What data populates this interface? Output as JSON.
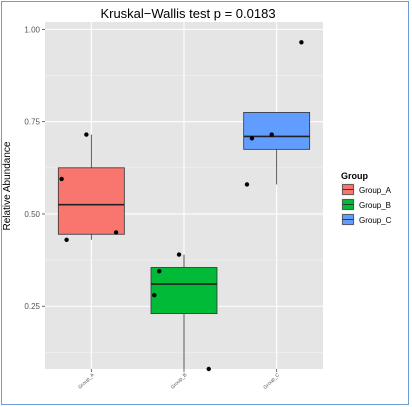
{
  "chart_data": {
    "type": "box",
    "title": "Kruskal−Wallis test   p = 0.0183",
    "ylabel": "Relative Abundance",
    "xlabel": "",
    "ylim": [
      0.08,
      1.02
    ],
    "yticks": [
      0.25,
      0.5,
      0.75,
      1.0
    ],
    "ytick_labels": [
      "0.25",
      "0.50",
      "0.75",
      "1.00"
    ],
    "categories": [
      "Group_A",
      "Group_B",
      "Group_C"
    ],
    "grid": true,
    "legend": {
      "title": "Group",
      "position": "right"
    },
    "series": [
      {
        "name": "Group_A",
        "color": "#f8766d",
        "box": {
          "min": 0.43,
          "q1": 0.445,
          "median": 0.525,
          "q3": 0.625,
          "max": 0.715
        },
        "points": [
          0.595,
          0.43,
          0.715,
          0.45
        ]
      },
      {
        "name": "Group_B",
        "color": "#00ba38",
        "box": {
          "min": 0.08,
          "q1": 0.23,
          "median": 0.31,
          "q3": 0.355,
          "max": 0.39
        },
        "points": [
          0.28,
          0.345,
          0.39,
          0.08
        ]
      },
      {
        "name": "Group_C",
        "color": "#619cff",
        "box": {
          "min": 0.58,
          "q1": 0.675,
          "median": 0.71,
          "q3": 0.775,
          "max": 0.775
        },
        "points": [
          0.58,
          0.705,
          0.715,
          0.965
        ]
      }
    ]
  }
}
